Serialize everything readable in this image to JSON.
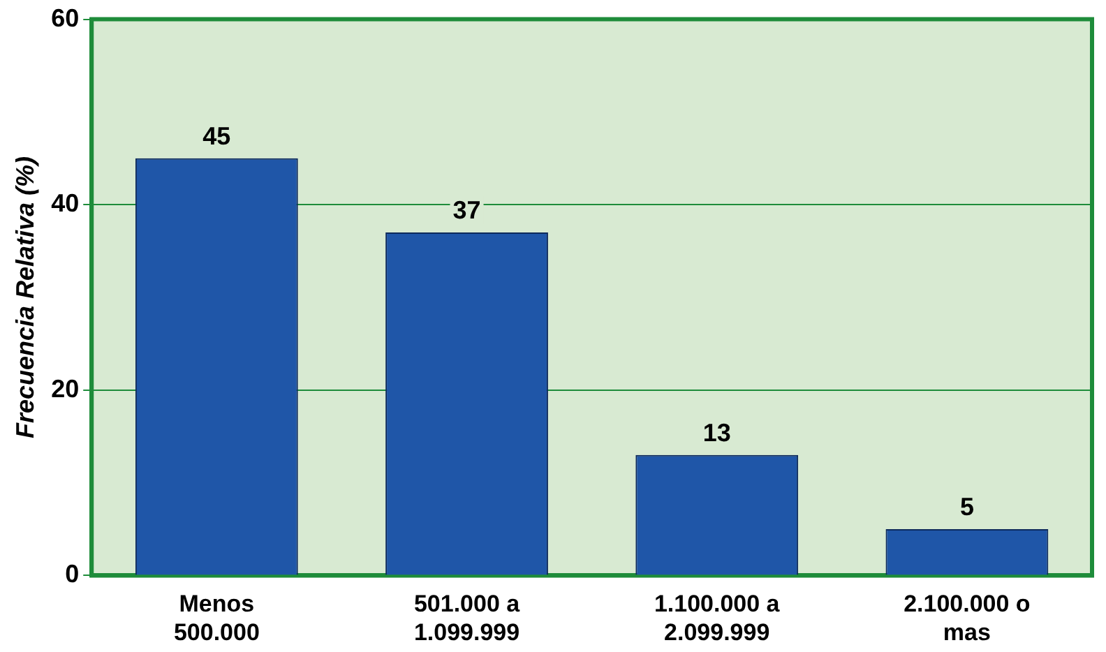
{
  "chart_data": {
    "type": "bar",
    "ylabel": "Frecuencia Relativa (%)",
    "categories": [
      "Menos 500.000",
      "501.000 a 1.099.999",
      "1.100.000 a 2.099.999",
      "2.100.000 o mas"
    ],
    "values": [
      45,
      37,
      13,
      5
    ],
    "color": "#1f56a8",
    "ylim": [
      0,
      60
    ],
    "yticks": [
      0,
      20,
      40,
      60
    ],
    "grid": "y",
    "data_labels": true
  }
}
